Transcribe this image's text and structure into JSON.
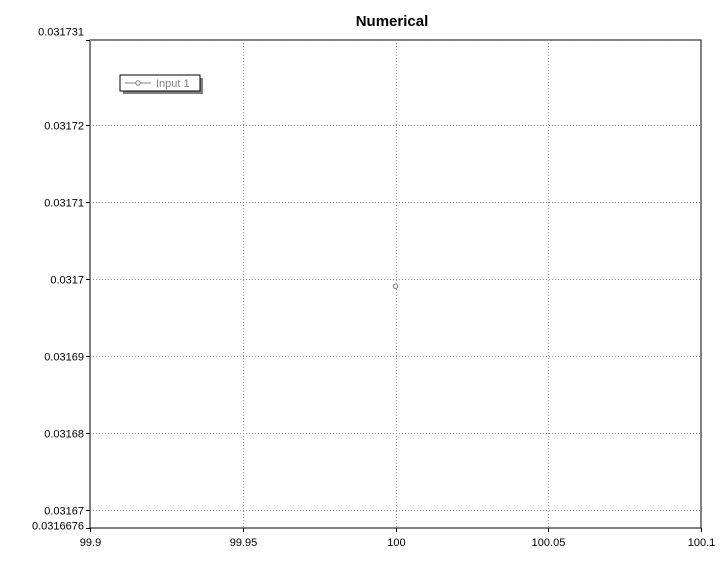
{
  "chart_data": {
    "type": "scatter",
    "title": "Numerical",
    "xlabel": "",
    "ylabel": "",
    "xlim": [
      99.9,
      100.1
    ],
    "ylim": [
      0.0316676,
      0.031731
    ],
    "x_ticks": [
      99.9,
      99.95,
      100,
      100.05,
      100.1
    ],
    "x_tick_labels": [
      "99.9",
      "99.95",
      "100",
      "100.05",
      "100.1"
    ],
    "y_ticks": [
      0.0316676,
      0.03167,
      0.03168,
      0.03169,
      0.0317,
      0.03171,
      0.03172,
      0.031731
    ],
    "y_tick_labels": [
      "0.0316676",
      "0.03167",
      "0.03168",
      "0.03169",
      "0.0317",
      "0.03171",
      "0.03172",
      "0.031731"
    ],
    "grid": true,
    "legend_position": "top-left",
    "series": [
      {
        "name": "Input 1",
        "color": "#808080",
        "marker": "circle",
        "points": [
          {
            "x": 100,
            "y": 0.031699
          }
        ]
      }
    ]
  }
}
